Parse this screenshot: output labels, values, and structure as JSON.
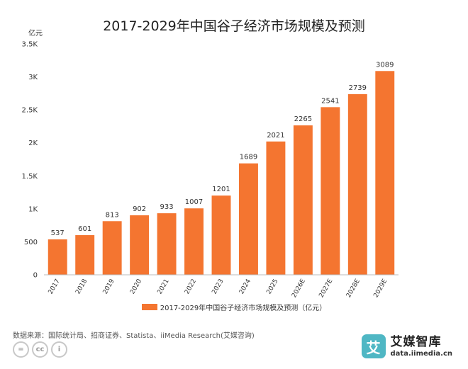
{
  "colors": {
    "bar": "#f47530",
    "axis": "#bbbbbb",
    "text": "#333333",
    "brand": "#4fb7c4"
  },
  "chart_data": {
    "type": "bar",
    "title": "2017-2029年中国谷子经济市场规模及预测",
    "unit_label": "亿元",
    "categories": [
      "2017",
      "2018",
      "2019",
      "2020",
      "2021",
      "2022",
      "2023",
      "2024",
      "2025",
      "2026E",
      "2027E",
      "2028E",
      "2029E"
    ],
    "series": [
      {
        "name": "2017-2029年中国谷子经济市场规模及预测（亿元）",
        "values": [
          537,
          601,
          813,
          902,
          933,
          1007,
          1201,
          1689,
          2021,
          2265,
          2541,
          2739,
          3089
        ]
      }
    ],
    "ylim": [
      0,
      3500
    ],
    "yticks": [
      0,
      500,
      1000,
      1500,
      2000,
      2500,
      3000,
      3500
    ],
    "ytick_labels": [
      "0",
      "500",
      "1K",
      "1.5K",
      "2K",
      "2.5K",
      "3K",
      "3.5K"
    ],
    "grid": false,
    "legend_position": "bottom"
  },
  "footer": {
    "source": "数据来源：国际统计局、招商证券、Statista、iiMedia Research(艾媒咨询)",
    "cc_labels": [
      "=",
      "cc",
      "i"
    ],
    "brand_logo": "艾",
    "brand_name": "艾媒智库",
    "brand_url": "data.iimedia.cn"
  }
}
